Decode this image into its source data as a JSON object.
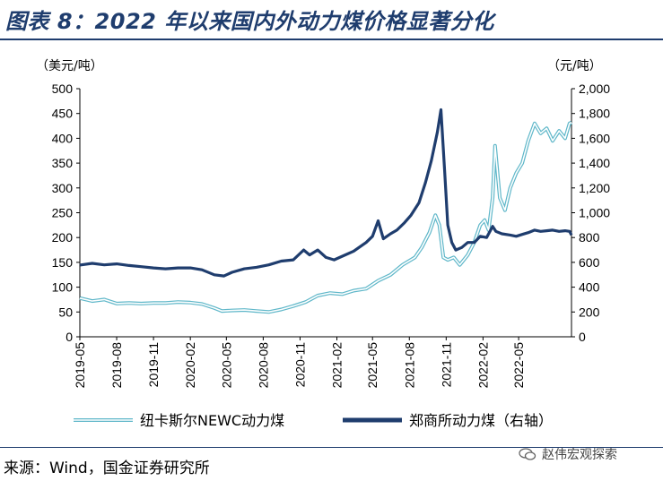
{
  "header": {
    "title": "图表 8：2022 年以来国内外动力煤价格显著分化"
  },
  "footer": {
    "source": "来源：Wind，国金证券研究所",
    "watermark": "赵伟宏观探索"
  },
  "colors": {
    "newc": "#5fb7c9",
    "zce": "#1f3d6e",
    "title": "#1f3d6e"
  },
  "chart_data": {
    "type": "line",
    "title": "",
    "left_unit": "（美元/吨）",
    "right_unit": "（元/吨）",
    "left_ylim": [
      0,
      500
    ],
    "right_ylim": [
      0,
      2000
    ],
    "left_ticks": [
      "0",
      "50",
      "100",
      "150",
      "200",
      "250",
      "300",
      "350",
      "400",
      "450",
      "500"
    ],
    "right_ticks": [
      "0",
      "200",
      "400",
      "600",
      "800",
      "1,000",
      "1,200",
      "1,400",
      "1,600",
      "1,800",
      "2,000"
    ],
    "x_ticks": [
      "2019-05",
      "2019-08",
      "2019-11",
      "2020-02",
      "2020-05",
      "2020-08",
      "2020-11",
      "2021-02",
      "2021-05",
      "2021-08",
      "2021-11",
      "2022-02",
      "2022-05"
    ],
    "x_range": [
      "2019-05",
      "2022-09"
    ],
    "series": [
      {
        "name": "纽卡斯尔NEWC动力煤",
        "axis": "left",
        "style": "double-line",
        "points": [
          [
            "2019-05-01",
            78
          ],
          [
            "2019-06-01",
            72
          ],
          [
            "2019-07-01",
            75
          ],
          [
            "2019-08-01",
            67
          ],
          [
            "2019-09-01",
            68
          ],
          [
            "2019-10-01",
            67
          ],
          [
            "2019-11-01",
            68
          ],
          [
            "2019-12-01",
            68
          ],
          [
            "2020-01-01",
            70
          ],
          [
            "2020-02-01",
            69
          ],
          [
            "2020-03-01",
            66
          ],
          [
            "2020-04-01",
            58
          ],
          [
            "2020-04-20",
            52
          ],
          [
            "2020-05-15",
            53
          ],
          [
            "2020-06-15",
            54
          ],
          [
            "2020-07-15",
            52
          ],
          [
            "2020-08-15",
            50
          ],
          [
            "2020-09-15",
            55
          ],
          [
            "2020-10-15",
            62
          ],
          [
            "2020-11-15",
            70
          ],
          [
            "2020-12-15",
            83
          ],
          [
            "2021-01-15",
            88
          ],
          [
            "2021-02-15",
            86
          ],
          [
            "2021-03-15",
            93
          ],
          [
            "2021-04-15",
            97
          ],
          [
            "2021-05-15",
            113
          ],
          [
            "2021-06-15",
            125
          ],
          [
            "2021-07-15",
            145
          ],
          [
            "2021-08-15",
            160
          ],
          [
            "2021-09-01",
            180
          ],
          [
            "2021-09-20",
            210
          ],
          [
            "2021-10-05",
            245
          ],
          [
            "2021-10-15",
            225
          ],
          [
            "2021-10-25",
            160
          ],
          [
            "2021-11-05",
            155
          ],
          [
            "2021-11-20",
            160
          ],
          [
            "2021-12-05",
            145
          ],
          [
            "2021-12-25",
            165
          ],
          [
            "2022-01-10",
            190
          ],
          [
            "2022-01-25",
            225
          ],
          [
            "2022-02-05",
            235
          ],
          [
            "2022-02-15",
            215
          ],
          [
            "2022-02-25",
            280
          ],
          [
            "2022-03-03",
            385
          ],
          [
            "2022-03-15",
            280
          ],
          [
            "2022-03-28",
            255
          ],
          [
            "2022-04-10",
            300
          ],
          [
            "2022-04-25",
            330
          ],
          [
            "2022-05-10",
            350
          ],
          [
            "2022-05-25",
            395
          ],
          [
            "2022-06-10",
            430
          ],
          [
            "2022-06-25",
            410
          ],
          [
            "2022-07-10",
            420
          ],
          [
            "2022-07-25",
            395
          ],
          [
            "2022-08-10",
            415
          ],
          [
            "2022-08-25",
            400
          ],
          [
            "2022-09-05",
            430
          ],
          [
            "2022-09-10",
            432
          ]
        ]
      },
      {
        "name": "郑商所动力煤（右轴）",
        "axis": "right",
        "style": "thick",
        "points": [
          [
            "2019-05-01",
            578
          ],
          [
            "2019-06-01",
            592
          ],
          [
            "2019-07-01",
            580
          ],
          [
            "2019-08-01",
            588
          ],
          [
            "2019-09-01",
            575
          ],
          [
            "2019-10-01",
            565
          ],
          [
            "2019-11-01",
            555
          ],
          [
            "2019-12-01",
            548
          ],
          [
            "2020-01-01",
            555
          ],
          [
            "2020-02-01",
            555
          ],
          [
            "2020-03-01",
            540
          ],
          [
            "2020-04-01",
            500
          ],
          [
            "2020-04-25",
            490
          ],
          [
            "2020-05-15",
            520
          ],
          [
            "2020-06-15",
            548
          ],
          [
            "2020-07-15",
            560
          ],
          [
            "2020-08-15",
            580
          ],
          [
            "2020-09-15",
            610
          ],
          [
            "2020-10-15",
            620
          ],
          [
            "2020-11-10",
            700
          ],
          [
            "2020-11-25",
            660
          ],
          [
            "2020-12-15",
            700
          ],
          [
            "2021-01-05",
            640
          ],
          [
            "2021-01-25",
            620
          ],
          [
            "2021-02-15",
            650
          ],
          [
            "2021-03-15",
            690
          ],
          [
            "2021-04-15",
            760
          ],
          [
            "2021-05-01",
            810
          ],
          [
            "2021-05-15",
            935
          ],
          [
            "2021-05-28",
            790
          ],
          [
            "2021-06-15",
            830
          ],
          [
            "2021-07-01",
            860
          ],
          [
            "2021-07-20",
            920
          ],
          [
            "2021-08-05",
            980
          ],
          [
            "2021-08-25",
            1080
          ],
          [
            "2021-09-10",
            1240
          ],
          [
            "2021-09-25",
            1420
          ],
          [
            "2021-10-10",
            1650
          ],
          [
            "2021-10-19",
            1830
          ],
          [
            "2021-10-28",
            1350
          ],
          [
            "2021-11-05",
            900
          ],
          [
            "2021-11-15",
            760
          ],
          [
            "2021-11-25",
            700
          ],
          [
            "2021-12-10",
            720
          ],
          [
            "2021-12-25",
            760
          ],
          [
            "2022-01-10",
            760
          ],
          [
            "2022-01-25",
            810
          ],
          [
            "2022-02-10",
            800
          ],
          [
            "2022-02-25",
            890
          ],
          [
            "2022-03-05",
            850
          ],
          [
            "2022-03-20",
            830
          ],
          [
            "2022-04-10",
            820
          ],
          [
            "2022-04-25",
            810
          ],
          [
            "2022-05-10",
            825
          ],
          [
            "2022-05-25",
            840
          ],
          [
            "2022-06-10",
            860
          ],
          [
            "2022-06-25",
            850
          ],
          [
            "2022-07-10",
            855
          ],
          [
            "2022-07-25",
            860
          ],
          [
            "2022-08-10",
            850
          ],
          [
            "2022-08-25",
            855
          ],
          [
            "2022-09-05",
            850
          ],
          [
            "2022-09-10",
            820
          ]
        ]
      }
    ],
    "legend_position": "bottom"
  }
}
